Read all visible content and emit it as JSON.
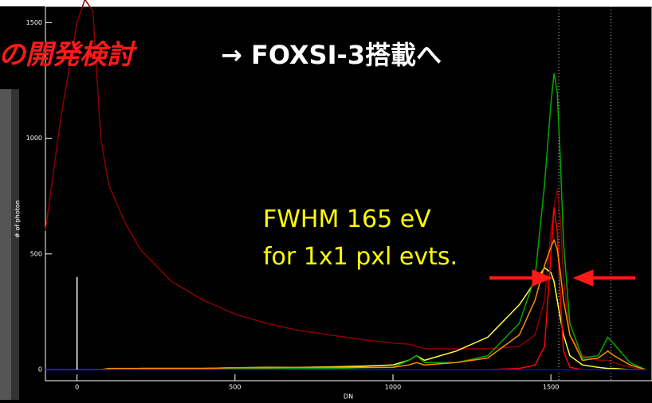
{
  "chart_data": {
    "type": "line",
    "title_red": "の開発検討",
    "title_white": "→ FOXSI-3搭載へ",
    "ylabel": "# of photon",
    "xlabel": "DN",
    "annotations": [
      "FWHM 165 eV",
      "for 1x1 pxl evts."
    ],
    "xlim": [
      -100,
      1820
    ],
    "ylim": [
      -48,
      1570
    ],
    "xticks": [
      0,
      500,
      1000,
      1500
    ],
    "yticks": [
      0,
      500,
      1000,
      1500
    ],
    "vlines": [
      1525,
      1690
    ],
    "x": [
      -100,
      -50,
      0,
      25,
      50,
      75,
      100,
      150,
      200,
      300,
      400,
      500,
      600,
      700,
      800,
      900,
      1000,
      1050,
      1075,
      1100,
      1200,
      1300,
      1400,
      1450,
      1480,
      1500,
      1510,
      1520,
      1530,
      1540,
      1560,
      1600,
      1650,
      1680,
      1700,
      1750,
      1800
    ],
    "series": [
      {
        "color": "#8b0000",
        "values": [
          600,
          1100,
          1500,
          1600,
          1550,
          1000,
          800,
          640,
          520,
          380,
          300,
          240,
          200,
          170,
          150,
          130,
          115,
          110,
          100,
          90,
          90,
          90,
          100,
          150,
          300,
          600,
          700,
          780,
          650,
          400,
          150,
          60,
          40,
          40,
          30,
          10,
          0
        ]
      },
      {
        "color": "#ffff33",
        "values": [
          0,
          0,
          0,
          0,
          0,
          0,
          0,
          0,
          5,
          5,
          5,
          8,
          10,
          10,
          12,
          15,
          20,
          40,
          60,
          40,
          80,
          140,
          280,
          380,
          440,
          420,
          380,
          300,
          220,
          150,
          60,
          20,
          10,
          5,
          5,
          0,
          0
        ]
      },
      {
        "color": "#00aa00",
        "values": [
          0,
          0,
          0,
          0,
          0,
          0,
          0,
          0,
          5,
          5,
          5,
          5,
          5,
          5,
          5,
          8,
          10,
          40,
          60,
          30,
          30,
          60,
          200,
          400,
          800,
          1150,
          1280,
          1200,
          900,
          550,
          200,
          50,
          60,
          140,
          110,
          30,
          0
        ]
      },
      {
        "color": "#ff0000",
        "values": [
          0,
          0,
          0,
          0,
          0,
          0,
          0,
          0,
          0,
          0,
          0,
          0,
          0,
          0,
          0,
          0,
          0,
          0,
          0,
          0,
          0,
          0,
          5,
          20,
          100,
          500,
          700,
          600,
          300,
          80,
          10,
          0,
          0,
          0,
          0,
          0,
          0
        ]
      },
      {
        "color": "#ff8c00",
        "values": [
          0,
          0,
          0,
          0,
          0,
          0,
          5,
          5,
          5,
          5,
          5,
          8,
          8,
          10,
          10,
          10,
          10,
          20,
          30,
          20,
          30,
          50,
          150,
          300,
          450,
          530,
          560,
          520,
          420,
          300,
          150,
          40,
          50,
          80,
          60,
          20,
          0
        ]
      },
      {
        "color": "#0000ff",
        "values": [
          0,
          0,
          0,
          0,
          0,
          0,
          0,
          0,
          0,
          0,
          0,
          0,
          0,
          0,
          0,
          0,
          0,
          0,
          0,
          0,
          0,
          0,
          0,
          0,
          0,
          0,
          0,
          0,
          0,
          0,
          0,
          0,
          0,
          0,
          0,
          0,
          0
        ]
      },
      {
        "color": "#ffffff",
        "values": [
          null,
          null,
          400,
          null,
          null,
          null,
          null,
          null,
          null,
          null,
          null,
          null,
          null,
          null,
          null,
          null,
          null,
          null,
          null,
          null,
          null,
          null,
          null,
          null,
          null,
          null,
          null,
          null,
          null,
          null,
          null,
          null,
          null,
          null,
          null,
          null,
          null
        ]
      }
    ]
  }
}
